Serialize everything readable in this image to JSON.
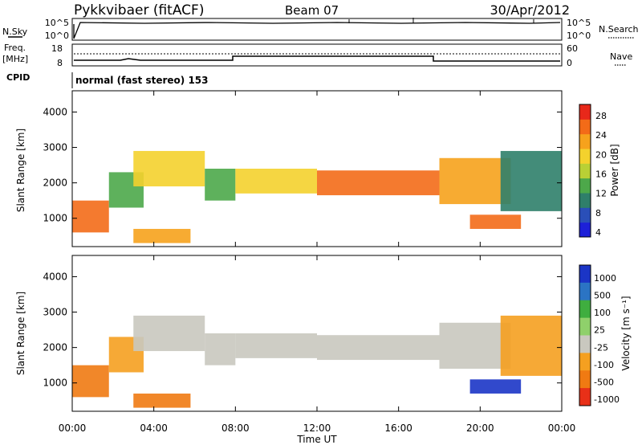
{
  "header": {
    "station": "Pykkvibaer (fitACF)",
    "beam": "Beam 07",
    "date": "30/Apr/2012"
  },
  "sky_panel": {
    "left_label": "N.Sky",
    "right_label": "N.Search",
    "left_ticks": [
      "10^5",
      "10^0"
    ],
    "right_ticks": [
      "10^5",
      "10^0"
    ]
  },
  "freq_panel": {
    "left_label_1": "Freq.",
    "left_label_2": "[MHz]",
    "right_label": "Nave",
    "left_ticks": [
      "18",
      "8"
    ],
    "right_ticks": [
      "60",
      "0"
    ],
    "cpid_label": "CPID",
    "cpid_text": "normal (fast stereo) 153"
  },
  "power_panel": {
    "ylabel": "Slant Range [km]",
    "yticks": [
      "4000",
      "3000",
      "2000",
      "1000"
    ],
    "colorbar_label": "Power [dB]",
    "colorbar_ticks": [
      "28",
      "24",
      "20",
      "16",
      "12",
      "8",
      "4"
    ]
  },
  "velocity_panel": {
    "ylabel": "Slant Range [km]",
    "yticks": [
      "4000",
      "3000",
      "2000",
      "1000"
    ],
    "colorbar_label": "Velocity [m s⁻¹]",
    "colorbar_ticks": [
      "1000",
      "500",
      "100",
      "25",
      "-25",
      "-100",
      "-500",
      "-1000"
    ]
  },
  "x_axis": {
    "label": "Time UT",
    "ticks": [
      "00:00",
      "04:00",
      "08:00",
      "12:00",
      "16:00",
      "20:00",
      "00:00"
    ]
  },
  "chart_data": {
    "type": "heatmap",
    "x_range_hours": [
      0,
      24
    ],
    "y_range_km": [
      200,
      4600
    ],
    "power_scale_db": [
      0,
      32
    ],
    "velocity_scale_ms": [
      -1000,
      1000
    ],
    "power_colors": [
      "#1d20d8",
      "#2a4fb8",
      "#2f7f6a",
      "#4da84a",
      "#b9d035",
      "#f4d22d",
      "#f6a21c",
      "#f36b18",
      "#e8281a"
    ],
    "velocity_colors": [
      "#1b35c6",
      "#2b74c4",
      "#3fae3f",
      "#8fd06b",
      "#c9c8bf",
      "#f5a020",
      "#f07a12",
      "#e83018"
    ],
    "echo_regions": [
      {
        "t0": 0.0,
        "t1": 1.8,
        "r0": 600,
        "r1": 1500,
        "power_db": 28,
        "velocity_ms": -200
      },
      {
        "t0": 1.8,
        "t1": 3.5,
        "r0": 1300,
        "r1": 2300,
        "power_db": 14,
        "velocity_ms": -60
      },
      {
        "t0": 3.0,
        "t1": 6.5,
        "r0": 1900,
        "r1": 2900,
        "power_db": 18,
        "velocity_ms": 0
      },
      {
        "t0": 3.0,
        "t1": 5.8,
        "r0": 300,
        "r1": 700,
        "power_db": 22,
        "velocity_ms": -150
      },
      {
        "t0": 6.5,
        "t1": 8.0,
        "r0": 1500,
        "r1": 2400,
        "power_db": 14,
        "velocity_ms": 0
      },
      {
        "t0": 8.0,
        "t1": 12.0,
        "r0": 1700,
        "r1": 2400,
        "power_db": 20,
        "velocity_ms": 0
      },
      {
        "t0": 12.0,
        "t1": 18.0,
        "r0": 1650,
        "r1": 2350,
        "power_db": 27,
        "velocity_ms": 0
      },
      {
        "t0": 18.0,
        "t1": 21.5,
        "r0": 1400,
        "r1": 2700,
        "power_db": 22,
        "velocity_ms": 0
      },
      {
        "t0": 19.5,
        "t1": 22.0,
        "r0": 700,
        "r1": 1100,
        "power_db": 26,
        "velocity_ms": 600
      },
      {
        "t0": 21.0,
        "t1": 24.0,
        "r0": 1200,
        "r1": 2900,
        "power_db": 10,
        "velocity_ms": -80
      }
    ]
  }
}
